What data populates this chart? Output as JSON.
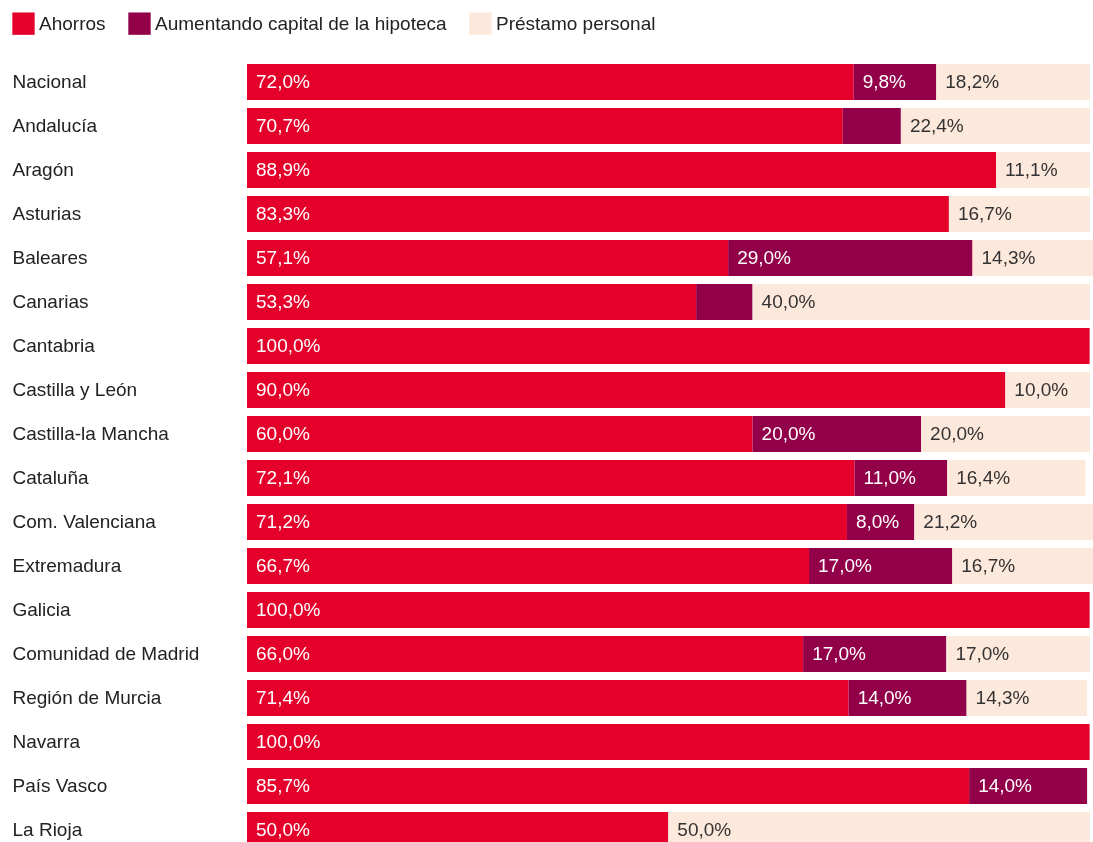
{
  "chart_data": {
    "type": "bar",
    "orientation": "horizontal",
    "stacked": true,
    "legend": "top left",
    "categories": [
      "Nacional",
      "Andalucía",
      "Aragón",
      "Asturias",
      "Baleares",
      "Canarias",
      "Cantabria",
      "Castilla y León",
      "Castilla-la Mancha",
      "Cataluña",
      "Com. Valenciana",
      "Extremadura",
      "Galicia",
      "Comunidad de Madrid",
      "Región de Murcia",
      "Navarra",
      "País Vasco",
      "La Rioja"
    ],
    "series": [
      {
        "name": "Ahorros",
        "color": "#e4002b",
        "values": [
          72.0,
          70.7,
          88.9,
          83.3,
          57.1,
          53.3,
          100.0,
          90.0,
          60.0,
          72.1,
          71.2,
          66.7,
          100.0,
          66.0,
          71.4,
          100.0,
          85.7,
          50.0
        ],
        "value_labels": [
          "72,0%",
          "70,7%",
          "88,9%",
          "83,3%",
          "57,1%",
          "53,3%",
          "100,0%",
          "90,0%",
          "60,0%",
          "72,1%",
          "71,2%",
          "66,7%",
          "100,0%",
          "66,0%",
          "71,4%",
          "100,0%",
          "85,7%",
          "50,0%"
        ]
      },
      {
        "name": "Aumentando capital de la hipoteca",
        "color": "#93004a",
        "values": [
          9.8,
          6.9,
          null,
          null,
          29.0,
          6.7,
          null,
          null,
          20.0,
          11.0,
          8.0,
          17.0,
          null,
          17.0,
          14.0,
          null,
          14.0,
          null
        ],
        "value_labels": [
          "9,8%",
          null,
          null,
          null,
          "29,0%",
          null,
          null,
          null,
          "20,0%",
          "11,0%",
          "8,0%",
          "17,0%",
          null,
          "17,0%",
          "14,0%",
          null,
          "14,0%",
          null
        ]
      },
      {
        "name": "Préstamo personal",
        "color": "#fde8dc",
        "values": [
          18.2,
          22.4,
          11.1,
          16.7,
          14.3,
          40.0,
          null,
          10.0,
          20.0,
          16.4,
          21.2,
          16.7,
          null,
          17.0,
          14.3,
          null,
          null,
          50.0
        ],
        "value_labels": [
          "18,2%",
          "22,4%",
          "11,1%",
          "16,7%",
          "14,3%",
          "40,0%",
          null,
          "10,0%",
          "20,0%",
          "16,4%",
          "21,2%",
          "16,7%",
          null,
          "17,0%",
          "14,3%",
          null,
          null,
          "50,0%"
        ]
      }
    ]
  }
}
